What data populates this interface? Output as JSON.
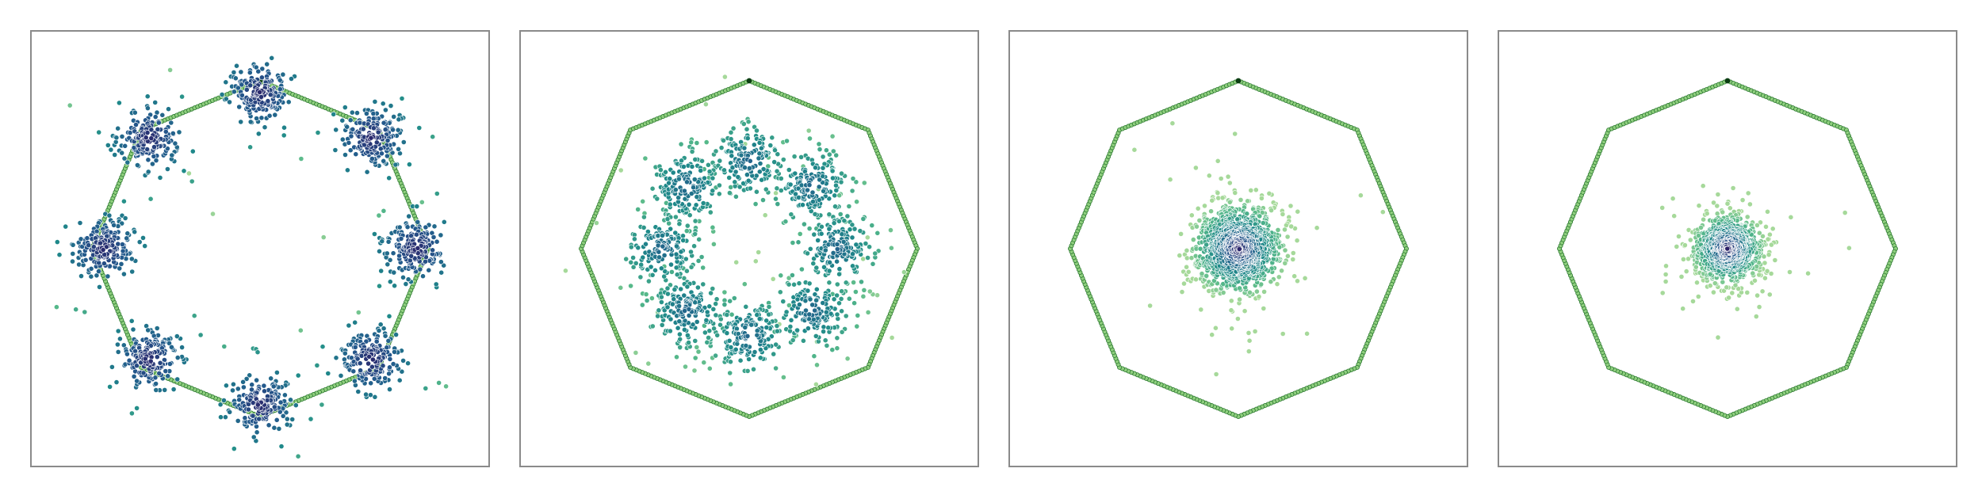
{
  "chart_data": [
    {
      "type": "scatter",
      "title": "",
      "xlabel": "",
      "ylabel": "",
      "xlim": [
        -1.15,
        1.15
      ],
      "ylim": [
        -1.15,
        1.15
      ],
      "grid": false,
      "ticks": false,
      "boundary": {
        "shape": "octagon",
        "vertices": 8,
        "radius": 1.0,
        "color": "#5fae55"
      },
      "colormap": [
        "#2d0f5c",
        "#24588c",
        "#1f8a8a",
        "#55b88a",
        "#a6d99a"
      ],
      "clusters": [
        {
          "center": [
            0.0,
            0.93
          ],
          "spread": 0.09,
          "points": 180
        },
        {
          "center": [
            0.66,
            0.66
          ],
          "spread": 0.09,
          "points": 180
        },
        {
          "center": [
            0.93,
            0.0
          ],
          "spread": 0.09,
          "points": 180
        },
        {
          "center": [
            0.66,
            -0.66
          ],
          "spread": 0.09,
          "points": 180
        },
        {
          "center": [
            0.0,
            -0.93
          ],
          "spread": 0.09,
          "points": 180
        },
        {
          "center": [
            -0.66,
            -0.66
          ],
          "spread": 0.09,
          "points": 180
        },
        {
          "center": [
            -0.93,
            0.0
          ],
          "spread": 0.09,
          "points": 180
        },
        {
          "center": [
            -0.66,
            0.66
          ],
          "spread": 0.09,
          "points": 180
        }
      ],
      "color_by": "cluster_density"
    },
    {
      "type": "scatter",
      "title": "",
      "xlabel": "",
      "ylabel": "",
      "xlim": [
        -1.15,
        1.15
      ],
      "ylim": [
        -1.15,
        1.15
      ],
      "grid": false,
      "ticks": false,
      "boundary": {
        "shape": "octagon",
        "vertices": 8,
        "radius": 1.0,
        "color": "#5fae55"
      },
      "colormap": [
        "#2d0f5c",
        "#24588c",
        "#1f8a8a",
        "#55b88a",
        "#a6d99a"
      ],
      "clusters": [
        {
          "center": [
            0.0,
            0.52
          ],
          "spread": 0.11,
          "points": 170
        },
        {
          "center": [
            0.37,
            0.37
          ],
          "spread": 0.11,
          "points": 170
        },
        {
          "center": [
            0.52,
            0.0
          ],
          "spread": 0.11,
          "points": 170
        },
        {
          "center": [
            0.37,
            -0.37
          ],
          "spread": 0.11,
          "points": 170
        },
        {
          "center": [
            0.0,
            -0.52
          ],
          "spread": 0.11,
          "points": 170
        },
        {
          "center": [
            -0.37,
            -0.37
          ],
          "spread": 0.11,
          "points": 170
        },
        {
          "center": [
            -0.52,
            0.0
          ],
          "spread": 0.11,
          "points": 170
        },
        {
          "center": [
            -0.37,
            0.37
          ],
          "spread": 0.11,
          "points": 170
        }
      ],
      "color_by": "cluster_density"
    },
    {
      "type": "scatter",
      "title": "",
      "xlabel": "",
      "ylabel": "",
      "xlim": [
        -1.15,
        1.15
      ],
      "ylim": [
        -1.15,
        1.15
      ],
      "grid": false,
      "ticks": false,
      "boundary": {
        "shape": "octagon",
        "vertices": 8,
        "radius": 1.0,
        "color": "#5fae55"
      },
      "colormap": [
        "#2d0f5c",
        "#24588c",
        "#1f8a8a",
        "#55b88a",
        "#a6d99a"
      ],
      "clusters": [
        {
          "center": [
            0.0,
            0.0
          ],
          "spread": 0.12,
          "points": 1300
        }
      ],
      "color_by": "radial_density"
    },
    {
      "type": "scatter",
      "title": "",
      "xlabel": "",
      "ylabel": "",
      "xlim": [
        -1.15,
        1.15
      ],
      "ylim": [
        -1.15,
        1.15
      ],
      "grid": false,
      "ticks": false,
      "boundary": {
        "shape": "octagon",
        "vertices": 8,
        "radius": 1.0,
        "color": "#5fae55"
      },
      "colormap": [
        "#2d0f5c",
        "#24588c",
        "#1f8a8a",
        "#55b88a",
        "#a6d99a"
      ],
      "clusters": [
        {
          "center": [
            0.0,
            0.0
          ],
          "spread": 0.09,
          "points": 1100
        }
      ],
      "color_by": "radial_density"
    }
  ]
}
